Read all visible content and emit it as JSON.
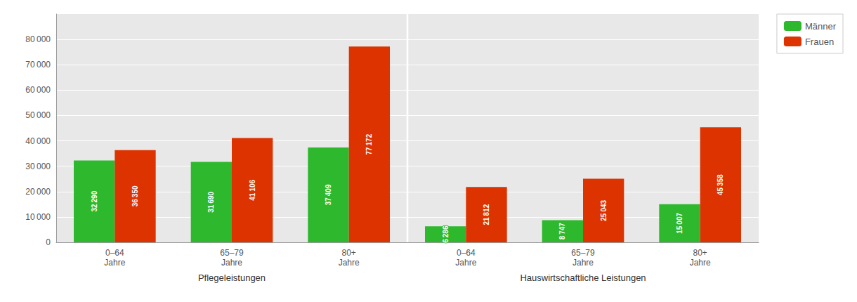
{
  "chart_data": {
    "type": "bar",
    "categories": [
      "0–64\nJahre",
      "65–79\nJahre",
      "80+\nJahre",
      "0–64\nJahre",
      "65–79\nJahre",
      "80+\nJahre"
    ],
    "series": [
      {
        "name": "Männer",
        "color": "#2db82d",
        "values": [
          32290,
          31690,
          37409,
          6286,
          8747,
          15007
        ],
        "value_labels": [
          "32 290",
          "31 690",
          "37 409",
          "6 286",
          "8 747",
          "15 007"
        ]
      },
      {
        "name": "Frauen",
        "color": "#dd3300",
        "values": [
          36350,
          41106,
          77172,
          21812,
          25043,
          45358
        ],
        "value_labels": [
          "36 350",
          "41 106",
          "77 172",
          "21 812",
          "25 043",
          "45 358"
        ]
      }
    ],
    "annotations": [
      "Pflegeleistungen",
      "Hauswirtschaftliche Leistungen"
    ],
    "ylim": [
      0,
      90000
    ],
    "yticks": [
      0,
      {
        "value": 10000,
        "label": "10 000"
      },
      {
        "value": 20000,
        "label": "20 000"
      },
      {
        "value": 30000,
        "label": "30 000"
      },
      {
        "value": 40000,
        "label": "40 000"
      },
      {
        "value": 50000,
        "label": "50 000"
      },
      {
        "value": 60000,
        "label": "60 000"
      },
      {
        "value": 70000,
        "label": "70 000"
      },
      {
        "value": 80000,
        "label": "80 000"
      }
    ],
    "grid": true,
    "legend": "right",
    "data_labels": true
  }
}
